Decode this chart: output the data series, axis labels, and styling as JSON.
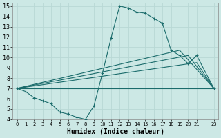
{
  "xlabel": "Humidex (Indice chaleur)",
  "background_color": "#cce8e5",
  "line_color": "#1a6b6b",
  "xlim": [
    -0.5,
    23.5
  ],
  "ylim": [
    4,
    15.3
  ],
  "xtick_vals": [
    0,
    1,
    2,
    3,
    4,
    5,
    6,
    7,
    8,
    9,
    10,
    11,
    12,
    13,
    14,
    15,
    16,
    17,
    18,
    19,
    20,
    21,
    23
  ],
  "ytick_vals": [
    4,
    5,
    6,
    7,
    8,
    9,
    10,
    11,
    12,
    13,
    14,
    15
  ],
  "curve1_x": [
    0,
    1,
    2,
    3,
    4,
    5,
    6,
    7,
    8,
    9,
    10,
    11,
    12,
    13,
    14,
    15,
    16,
    17,
    18,
    19,
    20,
    21,
    23
  ],
  "curve1_y": [
    7.0,
    6.7,
    6.1,
    5.8,
    5.5,
    4.7,
    4.5,
    4.2,
    4.0,
    5.3,
    8.5,
    11.9,
    15.0,
    14.8,
    14.4,
    14.3,
    13.8,
    13.3,
    10.7,
    10.2,
    9.4,
    10.2,
    7.0
  ],
  "line1_x": [
    0,
    23
  ],
  "line1_y": [
    7.0,
    7.0
  ],
  "line2_x": [
    0,
    21,
    23
  ],
  "line2_y": [
    7.0,
    9.5,
    7.0
  ],
  "line3_x": [
    0,
    20,
    23
  ],
  "line3_y": [
    7.0,
    10.2,
    7.0
  ],
  "line4_x": [
    0,
    19,
    23
  ],
  "line4_y": [
    7.0,
    10.7,
    7.0
  ]
}
